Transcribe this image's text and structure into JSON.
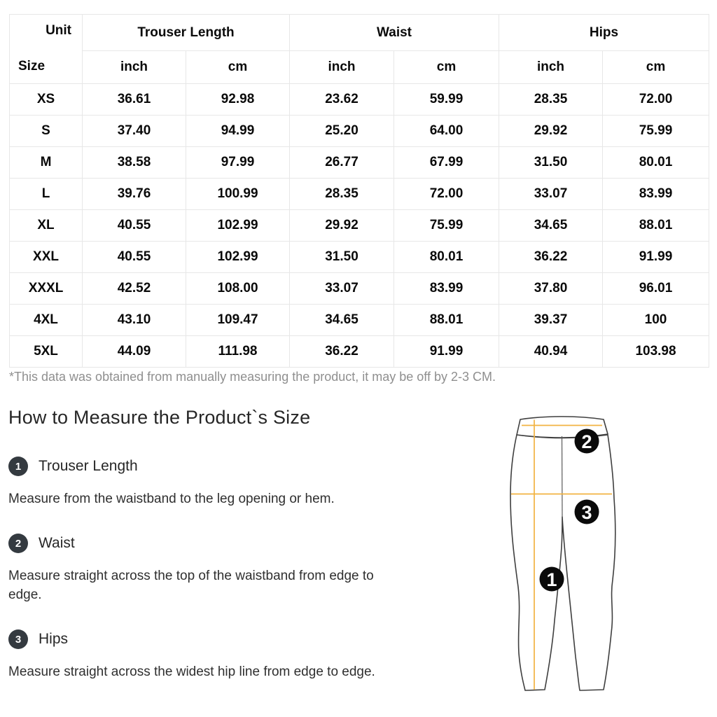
{
  "size_table": {
    "corner": {
      "unit_label": "Unit",
      "size_label": "Size"
    },
    "column_groups": [
      "Trouser Length",
      "Waist",
      "Hips"
    ],
    "unit_row": [
      "inch",
      "cm",
      "inch",
      "cm",
      "inch",
      "cm"
    ],
    "rows": [
      {
        "size": "XS",
        "cells": [
          "36.61",
          "92.98",
          "23.62",
          "59.99",
          "28.35",
          "72.00"
        ]
      },
      {
        "size": "S",
        "cells": [
          "37.40",
          "94.99",
          "25.20",
          "64.00",
          "29.92",
          "75.99"
        ]
      },
      {
        "size": "M",
        "cells": [
          "38.58",
          "97.99",
          "26.77",
          "67.99",
          "31.50",
          "80.01"
        ]
      },
      {
        "size": "L",
        "cells": [
          "39.76",
          "100.99",
          "28.35",
          "72.00",
          "33.07",
          "83.99"
        ]
      },
      {
        "size": "XL",
        "cells": [
          "40.55",
          "102.99",
          "29.92",
          "75.99",
          "34.65",
          "88.01"
        ]
      },
      {
        "size": "XXL",
        "cells": [
          "40.55",
          "102.99",
          "31.50",
          "80.01",
          "36.22",
          "91.99"
        ]
      },
      {
        "size": "XXXL",
        "cells": [
          "42.52",
          "108.00",
          "33.07",
          "83.99",
          "37.80",
          "96.01"
        ]
      },
      {
        "size": "4XL",
        "cells": [
          "43.10",
          "109.47",
          "34.65",
          "88.01",
          "39.37",
          "100"
        ]
      },
      {
        "size": "5XL",
        "cells": [
          "44.09",
          "111.98",
          "36.22",
          "91.99",
          "40.94",
          "103.98"
        ]
      }
    ]
  },
  "note": "*This data was obtained from manually measuring the product, it may be off by 2-3 CM.",
  "measure_section": {
    "title": "How to Measure the Product`s Size",
    "steps": [
      {
        "num": "1",
        "label": "Trouser Length",
        "description": "Measure from the waistband to the leg opening or hem."
      },
      {
        "num": "2",
        "label": "Waist",
        "description": "Measure straight across the top of the waistband from edge to\nedge."
      },
      {
        "num": "3",
        "label": "Hips",
        "description": "Measure straight across the widest hip line from edge to edge."
      }
    ]
  },
  "illustration": {
    "markers": [
      "1",
      "2",
      "3"
    ],
    "colors": {
      "measure_line": "#F2B341",
      "outline": "#3f3f3f",
      "seam": "#5a5a5a",
      "marker_bg": "#0a0a0a",
      "marker_text": "#ffffff"
    }
  },
  "colors": {
    "table_border": "#e7e7e7",
    "table_text": "#0a0a0a",
    "note_text": "#8f8f8f",
    "heading_text": "#262626",
    "step_badge_bg": "#343a40"
  }
}
